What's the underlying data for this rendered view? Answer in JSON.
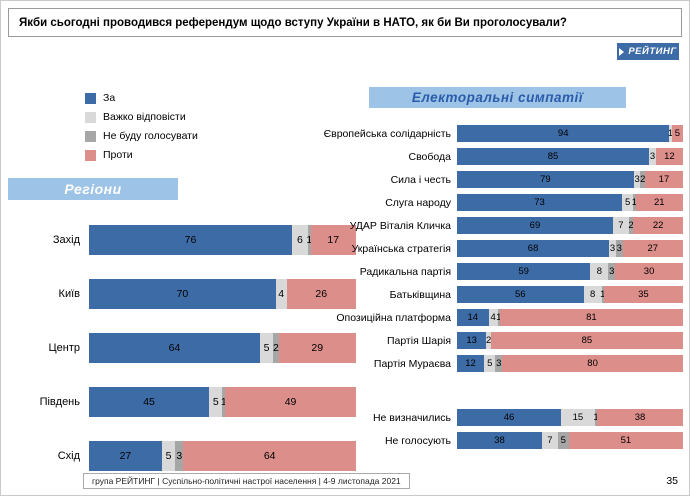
{
  "title": "Якби сьогодні проводився референдум щодо вступу України в НАТО, як би Ви проголосували?",
  "logo_text": "РЕЙТИНГ",
  "legend": [
    {
      "label": "За",
      "color": "#3d6ba6"
    },
    {
      "label": "Важко відповісти",
      "color": "#d9d9d9"
    },
    {
      "label": "Не буду голосувати",
      "color": "#a6a6a6"
    },
    {
      "label": "Проти",
      "color": "#dc8e8a"
    }
  ],
  "regions_header": "Регіони",
  "electoral_header": "Електоральні симпатії",
  "footer": {
    "source": "група РЕЙТИНГ | Суспільно-політичні настрої населення | 4-9 листопада 2021",
    "page": "35"
  },
  "chart_data": [
    {
      "type": "bar",
      "title": "Регіони",
      "orientation": "horizontal",
      "stacked": true,
      "unit": "percent",
      "series": [
        "За",
        "Важко відповісти",
        "Не буду голосувати",
        "Проти"
      ],
      "categories": [
        "Захід",
        "Київ",
        "Центр",
        "Південь",
        "Схід"
      ],
      "values": [
        [
          76,
          6,
          1,
          17
        ],
        [
          70,
          4,
          0,
          26
        ],
        [
          64,
          5,
          2,
          29
        ],
        [
          45,
          5,
          1,
          49
        ],
        [
          27,
          5,
          3,
          64
        ]
      ]
    },
    {
      "type": "bar",
      "title": "Електоральні симпатії",
      "orientation": "horizontal",
      "stacked": true,
      "unit": "percent",
      "series": [
        "За",
        "Важко відповісти",
        "Не буду голосувати",
        "Проти"
      ],
      "categories": [
        "Європейська солідарність",
        "Свобода",
        "Сила і честь",
        "Слуга народу",
        "УДАР Віталія Кличка",
        "Українська стратегія",
        "Радикальна партія",
        "Батьківщина",
        "Опозиційна платформа",
        "Партія Шарія",
        "Партія Мураєва"
      ],
      "values": [
        [
          94,
          1,
          0,
          5
        ],
        [
          85,
          3,
          0,
          12
        ],
        [
          79,
          3,
          2,
          17
        ],
        [
          73,
          5,
          1,
          21
        ],
        [
          69,
          7,
          2,
          22
        ],
        [
          68,
          3,
          3,
          27
        ],
        [
          59,
          8,
          3,
          30
        ],
        [
          56,
          8,
          1,
          35
        ],
        [
          14,
          4,
          1,
          81
        ],
        [
          13,
          2,
          0,
          85
        ],
        [
          12,
          5,
          3,
          80
        ]
      ]
    },
    {
      "type": "bar",
      "title": "Не визначились / Не голосують",
      "orientation": "horizontal",
      "stacked": true,
      "unit": "percent",
      "series": [
        "За",
        "Важко відповісти",
        "Не буду голосувати",
        "Проти"
      ],
      "categories": [
        "Не визначились",
        "Не голосують"
      ],
      "values": [
        [
          46,
          15,
          1,
          38
        ],
        [
          38,
          7,
          5,
          51
        ]
      ]
    }
  ]
}
